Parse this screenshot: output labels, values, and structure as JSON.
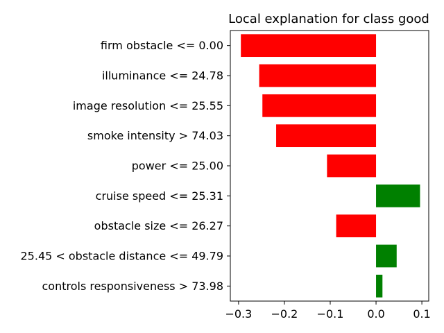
{
  "chart_data": {
    "type": "bar",
    "orientation": "horizontal",
    "title": "Local explanation for class good",
    "xlabel": "",
    "ylabel": "",
    "xlim": [
      -0.318,
      0.115
    ],
    "xticks": [
      -0.3,
      -0.2,
      -0.1,
      0.0,
      0.1
    ],
    "xtick_labels": [
      "−0.3",
      "−0.2",
      "−0.1",
      "0.0",
      "0.1"
    ],
    "categories": [
      "firm obstacle <= 0.00",
      "illuminance <= 24.78",
      "image resolution <= 25.55",
      "smoke intensity > 74.03",
      "power <= 25.00",
      "cruise speed <= 25.31",
      "obstacle size <= 26.27",
      "25.45 < obstacle distance <= 49.79",
      "controls responsiveness > 73.98"
    ],
    "values": [
      -0.295,
      -0.255,
      -0.248,
      -0.218,
      -0.107,
      0.096,
      -0.087,
      0.045,
      0.014
    ],
    "colors": {
      "negative": "#ff0000",
      "positive": "#008000",
      "axis": "#000000"
    },
    "grid": false,
    "legend": "none"
  }
}
